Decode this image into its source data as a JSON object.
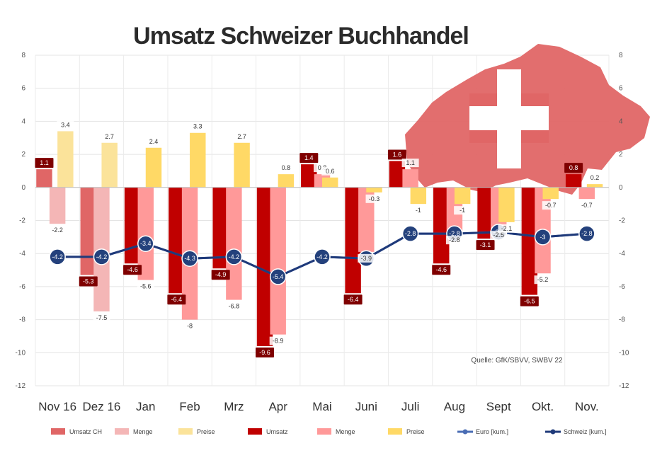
{
  "chart_data": {
    "type": "bar",
    "title": "Umsatz Schweizer Buchhandel",
    "source": "Quelle: GfK/SBVV, SWBV 22",
    "categories": [
      "Nov 16",
      "Dez 16",
      "Jan",
      "Feb",
      "Mrz",
      "Apr",
      "Mai",
      "Juni",
      "Juli",
      "Aug",
      "Sept",
      "Okt.",
      "Nov."
    ],
    "y_left_ticks": [
      "8",
      "6",
      "4",
      "2",
      "0",
      "-2",
      "-4",
      "-6",
      "-8",
      "-10",
      "-12"
    ],
    "y_right_ticks": [
      "8",
      "6",
      "4",
      "2",
      "0",
      "-2",
      "-4",
      "-6",
      "-8",
      "-10",
      "-12"
    ],
    "ylim": [
      -12,
      8
    ],
    "grid": true,
    "colors": {
      "umsatz_ch": "#e06666",
      "menge_ch": "#f4b6b6",
      "preis_ch": "#fbe39a",
      "umsatz": "#c00000",
      "menge": "#ff9999",
      "preis": "#ffd966",
      "line_light": "#4a6db4",
      "line_dark": "#1f3a7a",
      "marker": "#24417c",
      "map_fill": "#e06666",
      "cross": "#ffffff"
    },
    "series": [
      {
        "name": "Umsatz CH",
        "kind": "bar",
        "slot": 0,
        "color": "#e06666",
        "values": [
          1.1,
          -5.3,
          null,
          null,
          null,
          null,
          null,
          null,
          null,
          null,
          null,
          null,
          null
        ],
        "labels": [
          "1.1",
          "-5.3",
          "",
          "",
          "",
          "",
          "",
          "",
          "",
          "",
          "",
          "",
          ""
        ]
      },
      {
        "name": "Menge",
        "kind": "bar",
        "slot": 1,
        "color": "#f4b6b6",
        "values": [
          -2.2,
          -7.5,
          null,
          null,
          null,
          null,
          null,
          null,
          null,
          null,
          null,
          null,
          null
        ],
        "labels": [
          "-2.2",
          "-7.5",
          "",
          "",
          "",
          "",
          "",
          "",
          "",
          "",
          "",
          "",
          ""
        ]
      },
      {
        "name": "Preise",
        "kind": "bar",
        "slot": 2,
        "color": "#fbe39a",
        "values": [
          3.4,
          2.7,
          null,
          null,
          null,
          null,
          null,
          null,
          null,
          null,
          null,
          null,
          null
        ],
        "labels": [
          "3.4",
          "2.7",
          "",
          "",
          "",
          "",
          "",
          "",
          "",
          "",
          "",
          "",
          ""
        ]
      },
      {
        "name": "Umsatz",
        "kind": "bar",
        "slot": 0,
        "color": "#c00000",
        "values": [
          null,
          null,
          -4.6,
          -6.4,
          -4.9,
          -9.6,
          1.4,
          -6.4,
          1.6,
          -4.6,
          -3.1,
          -6.5,
          0.8
        ],
        "labels": [
          "",
          "",
          "-4.6",
          "-6.4",
          "-4.9",
          "-9.6",
          "1.4",
          "-6.4",
          "1.6",
          "-4.6",
          "-3.1",
          "-6.5",
          "0.8"
        ]
      },
      {
        "name": "Menge",
        "kind": "bar",
        "slot": 1,
        "color": "#ff9999",
        "values": [
          null,
          null,
          -5.6,
          -8.0,
          -6.8,
          -8.9,
          0.8,
          -3.9,
          1.1,
          -2.8,
          -2.5,
          -5.2,
          -0.7
        ],
        "labels": [
          "",
          "",
          "-5.6",
          "-8",
          "-6.8",
          "-8.9",
          "0.8",
          "-3.9",
          "1.1",
          "-2.8",
          "-2.5",
          "-5.2",
          "-0.7"
        ]
      },
      {
        "name": "Preise",
        "kind": "bar",
        "slot": 2,
        "color": "#ffd966",
        "values": [
          null,
          null,
          2.4,
          3.3,
          2.7,
          0.8,
          0.6,
          -0.3,
          -1.0,
          -1.0,
          -2.1,
          -0.7,
          0.2
        ],
        "labels": [
          "",
          "",
          "2.4",
          "3.3",
          "2.7",
          "0.8",
          "0.6",
          "-0.3",
          "-1",
          "-1",
          "-2.1",
          "-0.7",
          "0.2"
        ]
      },
      {
        "name": "Euro [kum.]",
        "kind": "line",
        "color": "#4a6db4",
        "values": [
          -4.2,
          -4.2,
          -3.4,
          -4.3,
          -4.2,
          -5.4,
          -4.2,
          -4.3,
          -2.8,
          -2.8,
          -2.7,
          -3.0,
          -2.8
        ],
        "labels": [
          "-4.2",
          "-4.2",
          "-3.4",
          "-4.3",
          "-4.2",
          "-5.4",
          "-4.2",
          "-4.3",
          "-2.8",
          "-2.8",
          "-2.7",
          "-3",
          "-2.8"
        ]
      },
      {
        "name": "Schweiz [kum.]",
        "kind": "line",
        "color": "#1f3a7a",
        "values": [
          -4.2,
          -4.2,
          -3.4,
          -4.3,
          -4.2,
          -5.4,
          -4.2,
          -4.3,
          -2.8,
          -2.8,
          -2.7,
          -3.0,
          -2.8
        ],
        "labels": [
          "",
          "",
          "",
          "",
          "",
          "",
          "",
          "",
          "",
          "",
          "",
          "",
          ""
        ]
      }
    ],
    "legend": {
      "placement": "bottom",
      "items": [
        {
          "name": "Umsatz CH",
          "type": "bar",
          "color": "#e06666"
        },
        {
          "name": "Menge",
          "type": "bar",
          "color": "#f4b6b6"
        },
        {
          "name": "Preise",
          "type": "bar",
          "color": "#fbe39a"
        },
        {
          "name": "Umsatz",
          "type": "bar",
          "color": "#c00000"
        },
        {
          "name": "Menge",
          "type": "bar",
          "color": "#ff9999"
        },
        {
          "name": "Preise",
          "type": "bar",
          "color": "#ffd966"
        },
        {
          "name": "Euro [kum.]",
          "type": "line",
          "color": "#4a6db4"
        },
        {
          "name": "Schweiz [kum.]",
          "type": "line",
          "color": "#1f3a7a"
        }
      ]
    }
  },
  "decor": {
    "map_icon": "switzerland-map-with-cross"
  }
}
